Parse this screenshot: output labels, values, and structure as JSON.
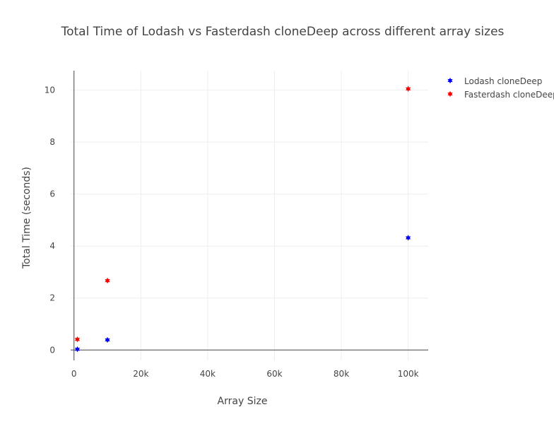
{
  "chart_data": {
    "type": "scatter",
    "title": "Total Time of Lodash vs Fasterdash cloneDeep across different array sizes",
    "xlabel": "Array Size",
    "ylabel": "Total Time (seconds)",
    "xlim": [
      -1000,
      106000
    ],
    "ylim": [
      -0.4,
      10.75
    ],
    "x_ticks": [
      0,
      20000,
      40000,
      60000,
      80000,
      100000
    ],
    "x_tick_labels": [
      "0",
      "20k",
      "40k",
      "60k",
      "80k",
      "100k"
    ],
    "y_ticks": [
      0,
      2,
      4,
      6,
      8,
      10
    ],
    "y_tick_labels": [
      "0",
      "2",
      "4",
      "6",
      "8",
      "10"
    ],
    "grid": true,
    "legend_position": "top-right",
    "series": [
      {
        "name": "Lodash cloneDeep",
        "color": "#0000ff",
        "x": [
          1000,
          10000,
          100000
        ],
        "y": [
          0.03,
          0.39,
          4.32
        ]
      },
      {
        "name": "Fasterdash cloneDeep",
        "color": "#ff0000",
        "x": [
          1000,
          10000,
          100000
        ],
        "y": [
          0.41,
          2.67,
          10.05
        ]
      }
    ]
  }
}
